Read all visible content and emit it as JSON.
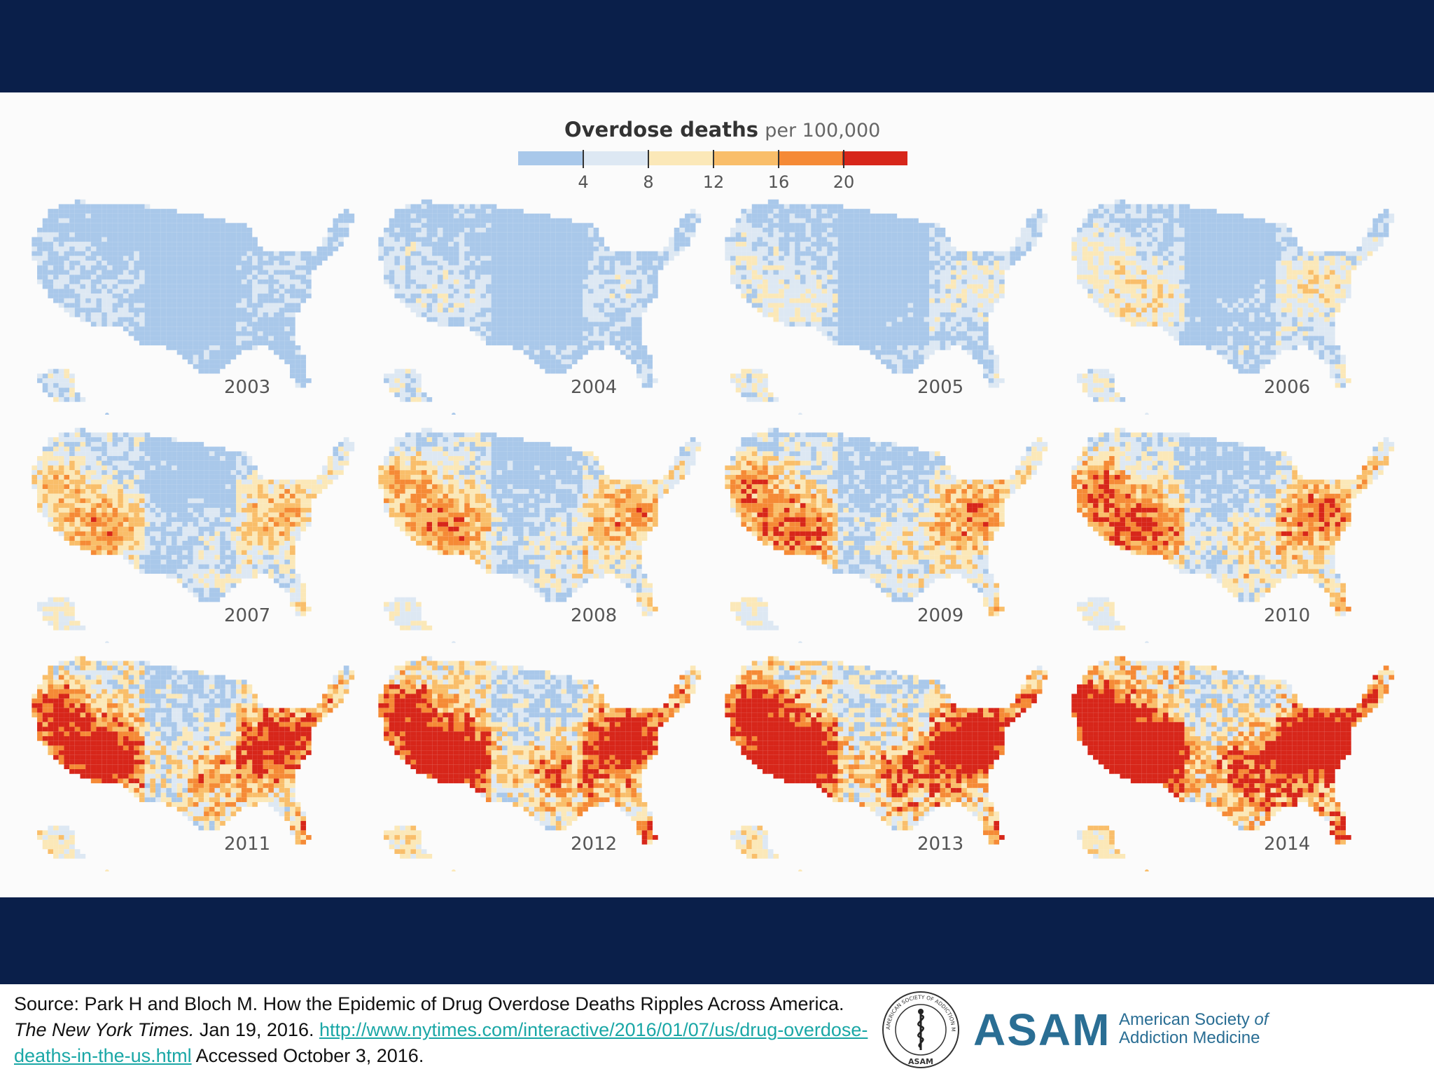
{
  "legend": {
    "title_strong": "Overdose deaths",
    "title_light": "per 100,000",
    "colors": [
      "#a9c8ea",
      "#dde8f3",
      "#fbe8b8",
      "#f9be6a",
      "#f58a36",
      "#d7261a"
    ],
    "ticks": [
      "4",
      "8",
      "12",
      "16",
      "20"
    ]
  },
  "panels": [
    {
      "year": "2003",
      "level": 0.1
    },
    {
      "year": "2004",
      "level": 0.14
    },
    {
      "year": "2005",
      "level": 0.18
    },
    {
      "year": "2006",
      "level": 0.24
    },
    {
      "year": "2007",
      "level": 0.34
    },
    {
      "year": "2008",
      "level": 0.38
    },
    {
      "year": "2009",
      "level": 0.42
    },
    {
      "year": "2010",
      "level": 0.46
    },
    {
      "year": "2011",
      "level": 0.58
    },
    {
      "year": "2012",
      "level": 0.64
    },
    {
      "year": "2013",
      "level": 0.7
    },
    {
      "year": "2014",
      "level": 0.78
    }
  ],
  "footer": {
    "source_prefix": "Source: Park H and Bloch M. How the Epidemic of Drug Overdose Deaths Ripples Across America. ",
    "journal": "The New York Times.",
    "date": " Jan 19, 2016. ",
    "url": "http://www.nytimes.com/interactive/2016/01/07/us/drug-overdose-deaths-in-the-us.html",
    "accessed": " Accessed October 3, 2016.",
    "logo_word": "ASAM",
    "logo_line1": "American Society ",
    "logo_of": "of",
    "logo_line2": "Addiction Medicine",
    "seal_top_text": "AMERICAN SOCIETY OF ADDICTION MEDICINE",
    "seal_bottom_text": "ASAM"
  }
}
